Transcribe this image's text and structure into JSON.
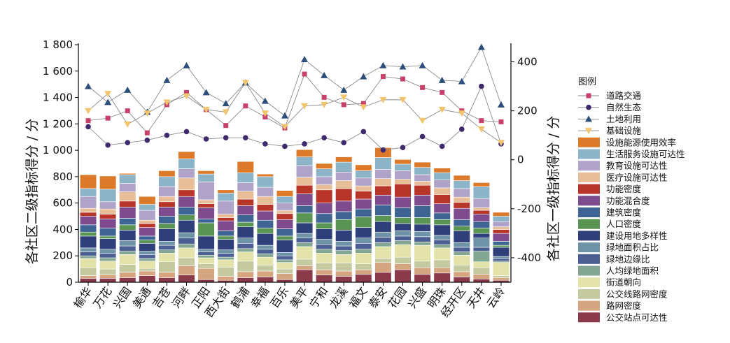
{
  "chart_data": {
    "type": "bar",
    "stacked": true,
    "categories": [
      "榆华",
      "万花",
      "兴国",
      "美通",
      "吉苍",
      "河畔",
      "正阳",
      "西大街",
      "鹤浦",
      "幸福",
      "百乐",
      "美平",
      "宁和",
      "龙溪",
      "福文",
      "泰安",
      "花园",
      "兴盛",
      "明珠",
      "经开区",
      "天井",
      "云岭"
    ],
    "ylabel": "各社区二级指标得分 / 分",
    "y2label": "各社区一级指标得分 / 分",
    "ylim": [
      0,
      1800
    ],
    "y2lim": [
      -500,
      470
    ],
    "yticks": [
      "0",
      "200",
      "400",
      "600",
      "800",
      "1 000",
      "1 200",
      "1 400",
      "1 600",
      "1 800"
    ],
    "y2ticks": [
      -400,
      -200,
      0,
      200,
      400
    ],
    "legend_title": "图例",
    "legend_position": "right",
    "grid": false,
    "series": [
      {
        "name": "公交站点可达性",
        "color": "#8B3A4A",
        "values": [
          30,
          30,
          35,
          50,
          35,
          55,
          20,
          15,
          35,
          40,
          20,
          95,
          55,
          45,
          60,
          75,
          95,
          60,
          70,
          40,
          25,
          15
        ]
      },
      {
        "name": "路网密度",
        "color": "#D4A57E",
        "values": [
          20,
          25,
          40,
          35,
          40,
          70,
          85,
          30,
          45,
          45,
          45,
          30,
          40,
          40,
          35,
          75,
          45,
          50,
          40,
          40,
          35,
          20
        ]
      },
      {
        "name": "公交线路网密度",
        "color": "#C4C9A0",
        "values": [
          60,
          45,
          60,
          20,
          80,
          60,
          35,
          70,
          80,
          45,
          35,
          50,
          50,
          60,
          45,
          30,
          50,
          50,
          60,
          50,
          50,
          15
        ]
      },
      {
        "name": "街道朝向",
        "color": "#E3E2A8",
        "values": [
          70,
          60,
          75,
          55,
          65,
          75,
          45,
          55,
          70,
          60,
          50,
          95,
          75,
          65,
          80,
          90,
          95,
          120,
          90,
          75,
          45,
          100
        ]
      },
      {
        "name": "人均绿地面积",
        "color": "#82A692",
        "values": [
          20,
          25,
          25,
          20,
          25,
          30,
          20,
          20,
          25,
          25,
          20,
          30,
          30,
          30,
          30,
          30,
          30,
          25,
          25,
          25,
          80,
          10
        ]
      },
      {
        "name": "绿地边缘比",
        "color": "#4B5F92",
        "values": [
          30,
          35,
          40,
          30,
          35,
          45,
          25,
          30,
          40,
          35,
          30,
          35,
          35,
          35,
          45,
          40,
          35,
          40,
          35,
          35,
          30,
          20
        ]
      },
      {
        "name": "绿地面积占比",
        "color": "#6E93A6",
        "values": [
          30,
          30,
          40,
          25,
          30,
          40,
          20,
          25,
          40,
          30,
          25,
          35,
          40,
          35,
          40,
          40,
          40,
          40,
          35,
          35,
          70,
          15
        ]
      },
      {
        "name": "建设用地多样性",
        "color": "#2F3F7A",
        "values": [
          90,
          80,
          80,
          60,
          95,
          95,
          100,
          80,
          85,
          90,
          95,
          80,
          80,
          85,
          80,
          80,
          55,
          55,
          80,
          90,
          35,
          70
        ]
      },
      {
        "name": "人口密度",
        "color": "#5A9452",
        "values": [
          30,
          20,
          40,
          25,
          40,
          40,
          100,
          25,
          35,
          40,
          30,
          75,
          45,
          80,
          80,
          45,
          45,
          50,
          40,
          35,
          40,
          15
        ]
      },
      {
        "name": "建筑密度",
        "color": "#3E6494",
        "values": [
          55,
          60,
          50,
          30,
          55,
          60,
          30,
          40,
          55,
          60,
          55,
          55,
          70,
          60,
          60,
          80,
          75,
          90,
          50,
          50,
          50,
          30
        ]
      },
      {
        "name": "功能混合度",
        "color": "#7E4B8E",
        "values": [
          65,
          70,
          85,
          65,
          70,
          80,
          85,
          75,
          70,
          70,
          70,
          90,
          80,
          80,
          75,
          75,
          80,
          80,
          70,
          85,
          55,
          60
        ]
      },
      {
        "name": "功能密度",
        "color": "#B8352A",
        "values": [
          30,
          35,
          45,
          30,
          40,
          50,
          30,
          25,
          50,
          50,
          45,
          65,
          100,
          95,
          60,
          70,
          100,
          75,
          70,
          45,
          30,
          30
        ]
      },
      {
        "name": "医疗设施可达性",
        "color": "#E8BE99",
        "values": [
          30,
          40,
          70,
          25,
          40,
          90,
          30,
          25,
          60,
          60,
          25,
          60,
          40,
          60,
          40,
          55,
          35,
          30,
          50,
          40,
          20,
          20
        ]
      },
      {
        "name": "教育设施可达性",
        "color": "#B0A3C9",
        "values": [
          90,
          55,
          65,
          75,
          75,
          70,
          135,
          100,
          65,
          70,
          55,
          90,
          60,
          65,
          60,
          70,
          65,
          50,
          60,
          65,
          70,
          40
        ]
      },
      {
        "name": "生活服务设施可达性",
        "color": "#8CB4C9",
        "values": [
          60,
          95,
          65,
          45,
          75,
          75,
          60,
          60,
          75,
          80,
          50,
          65,
          60,
          75,
          55,
          90,
          50,
          55,
          55,
          60,
          90,
          40
        ]
      },
      {
        "name": "设施能源使用效率",
        "color": "#DD7A2A",
        "values": [
          105,
          100,
          10,
          60,
          45,
          55,
          25,
          25,
          85,
          20,
          45,
          55,
          40,
          40,
          45,
          75,
          35,
          40,
          35,
          40,
          30,
          30
        ]
      }
    ],
    "line_series": [
      {
        "name": "道路交通",
        "color": "#C8416B",
        "marker": "square",
        "values": [
          160,
          170,
          200,
          110,
          225,
          275,
          205,
          140,
          220,
          175,
          130,
          350,
          255,
          225,
          230,
          340,
          330,
          295,
          275,
          200,
          160,
          155
        ]
      },
      {
        "name": "自然生态",
        "color": "#3F2A6E",
        "marker": "circle",
        "values": [
          135,
          60,
          70,
          80,
          100,
          115,
          85,
          90,
          90,
          65,
          55,
          65,
          90,
          70,
          115,
          40,
          50,
          95,
          55,
          125,
          300,
          65
        ]
      },
      {
        "name": "土地利用",
        "color": "#2C4E7A",
        "marker": "triangle",
        "values": [
          300,
          235,
          285,
          195,
          325,
          385,
          275,
          230,
          315,
          240,
          180,
          410,
          345,
          285,
          340,
          385,
          380,
          385,
          325,
          320,
          460,
          225
        ]
      },
      {
        "name": "基础设施",
        "color": "#F2C46D",
        "marker": "triangle-down",
        "values": [
          200,
          270,
          145,
          190,
          235,
          260,
          205,
          195,
          315,
          190,
          135,
          220,
          225,
          255,
          215,
          245,
          245,
          160,
          205,
          190,
          125,
          70
        ]
      }
    ]
  }
}
